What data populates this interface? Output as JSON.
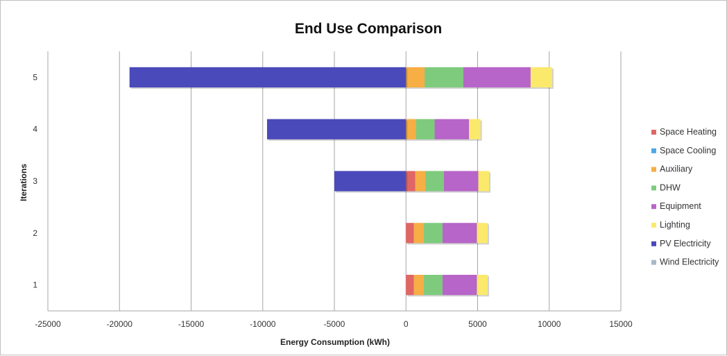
{
  "chart_data": {
    "type": "bar",
    "orientation": "horizontal",
    "stacked": true,
    "title": "End Use Comparison",
    "xlabel": "Energy Consumption (kWh)",
    "ylabel": "Iterations",
    "categories": [
      "1",
      "2",
      "3",
      "4",
      "5"
    ],
    "xlim": [
      -25000,
      15000
    ],
    "x_ticks": [
      -25000,
      -20000,
      -15000,
      -10000,
      -5000,
      0,
      5000,
      10000,
      15000
    ],
    "grid": "vertical",
    "legend_position": "right",
    "series": [
      {
        "name": "Space Heating",
        "color": "#e06666",
        "values": [
          550,
          550,
          650,
          0,
          0
        ]
      },
      {
        "name": "Space Cooling",
        "color": "#4ea8e8",
        "values": [
          0,
          0,
          0,
          0,
          0
        ]
      },
      {
        "name": "Auxiliary",
        "color": "#f6ae45",
        "values": [
          700,
          700,
          700,
          700,
          1300
        ]
      },
      {
        "name": "DHW",
        "color": "#7ecb7e",
        "values": [
          1300,
          1300,
          1300,
          1300,
          2700
        ]
      },
      {
        "name": "Equipment",
        "color": "#b765c8",
        "values": [
          2400,
          2400,
          2400,
          2400,
          4700
        ]
      },
      {
        "name": "Lighting",
        "color": "#fbe96c",
        "values": [
          750,
          750,
          750,
          800,
          1500
        ]
      },
      {
        "name": "PV Electricity",
        "color": "#4a4abb",
        "values": [
          0,
          0,
          -5000,
          -9700,
          -19300
        ]
      },
      {
        "name": "Wind Electricity",
        "color": "#a9b8c9",
        "values": [
          0,
          0,
          0,
          0,
          0
        ]
      }
    ]
  }
}
